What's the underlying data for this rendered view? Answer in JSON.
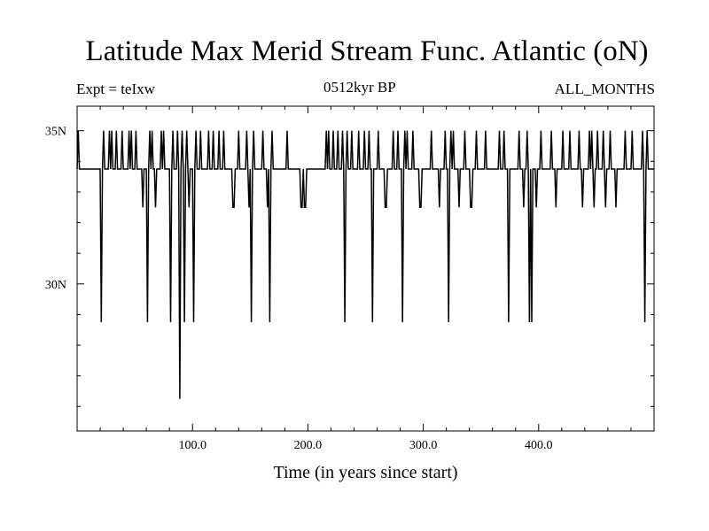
{
  "header": {
    "title": "Latitude Max Merid Stream Func. Atlantic (oN)",
    "left_text": "Expt = teIxw",
    "center_text": "0512kyr BP",
    "right_text": "ALL_MONTHS"
  },
  "chart_data": {
    "type": "line",
    "title": "Latitude Max Merid Stream Func. Atlantic (oN)",
    "xlabel": "Time (in years since start)",
    "ylabel": "",
    "xlim": [
      0,
      500
    ],
    "ylim": [
      25.2,
      35.8
    ],
    "x_ticks": [
      100,
      200,
      300,
      400
    ],
    "x_tick_labels": [
      "100.0",
      "200.0",
      "300.0",
      "400.0"
    ],
    "y_ticks": [
      30,
      35
    ],
    "y_tick_labels": [
      "30N",
      "35N"
    ],
    "baseline": 33.75,
    "high": 35.0,
    "low_values": [
      32.5,
      28.75,
      26.25
    ],
    "series": [
      {
        "points": [
          [
            0,
            33.75
          ],
          [
            1,
            35.0
          ],
          [
            2,
            33.75
          ],
          [
            20,
            33.75
          ],
          [
            21,
            28.75
          ],
          [
            22,
            33.75
          ],
          [
            23,
            35.0
          ],
          [
            24,
            33.75
          ],
          [
            27,
            33.75
          ],
          [
            28,
            35.0
          ],
          [
            29,
            33.75
          ],
          [
            30,
            35.0
          ],
          [
            31,
            33.75
          ],
          [
            33,
            33.75
          ],
          [
            34,
            35.0
          ],
          [
            35,
            33.75
          ],
          [
            38,
            33.75
          ],
          [
            39,
            35.0
          ],
          [
            40,
            33.75
          ],
          [
            44,
            33.75
          ],
          [
            45,
            35.0
          ],
          [
            46,
            33.75
          ],
          [
            47,
            35.0
          ],
          [
            48,
            33.75
          ],
          [
            50,
            33.75
          ],
          [
            51,
            35.0
          ],
          [
            52,
            33.75
          ],
          [
            56,
            33.75
          ],
          [
            57,
            32.5
          ],
          [
            58,
            33.75
          ],
          [
            60,
            33.75
          ],
          [
            61,
            28.75
          ],
          [
            62,
            33.75
          ],
          [
            63,
            35.0
          ],
          [
            64,
            33.75
          ],
          [
            65,
            35.0
          ],
          [
            66,
            33.75
          ],
          [
            67,
            33.75
          ],
          [
            68,
            32.5
          ],
          [
            69,
            33.75
          ],
          [
            72,
            33.75
          ],
          [
            73,
            35.0
          ],
          [
            74,
            33.75
          ],
          [
            75,
            35.0
          ],
          [
            76,
            33.75
          ],
          [
            80,
            33.75
          ],
          [
            81,
            28.75
          ],
          [
            82,
            33.75
          ],
          [
            83,
            35.0
          ],
          [
            84,
            33.75
          ],
          [
            86,
            33.75
          ],
          [
            87,
            35.0
          ],
          [
            88,
            33.75
          ],
          [
            89,
            26.25
          ],
          [
            90,
            33.75
          ],
          [
            91,
            35.0
          ],
          [
            92,
            33.75
          ],
          [
            93,
            28.75
          ],
          [
            94,
            33.75
          ],
          [
            95,
            35.0
          ],
          [
            96,
            33.75
          ],
          [
            97,
            32.5
          ],
          [
            98,
            33.75
          ],
          [
            100,
            33.75
          ],
          [
            101,
            28.75
          ],
          [
            102,
            33.75
          ],
          [
            103,
            35.0
          ],
          [
            104,
            33.75
          ],
          [
            106,
            33.75
          ],
          [
            107,
            35.0
          ],
          [
            108,
            33.75
          ],
          [
            113,
            33.75
          ],
          [
            114,
            35.0
          ],
          [
            115,
            33.75
          ],
          [
            117,
            33.75
          ],
          [
            118,
            35.0
          ],
          [
            119,
            33.75
          ],
          [
            122,
            33.75
          ],
          [
            123,
            35.0
          ],
          [
            124,
            33.75
          ],
          [
            126,
            33.75
          ],
          [
            127,
            35.0
          ],
          [
            128,
            33.75
          ],
          [
            134,
            33.75
          ],
          [
            135,
            32.5
          ],
          [
            136,
            32.5
          ],
          [
            137,
            33.75
          ],
          [
            139,
            33.75
          ],
          [
            140,
            35.0
          ],
          [
            141,
            33.75
          ],
          [
            146,
            33.75
          ],
          [
            147,
            35.0
          ],
          [
            148,
            33.75
          ],
          [
            149,
            32.5
          ],
          [
            150,
            33.75
          ],
          [
            151,
            28.75
          ],
          [
            152,
            33.75
          ],
          [
            153,
            35.0
          ],
          [
            154,
            33.75
          ],
          [
            160,
            33.75
          ],
          [
            161,
            35.0
          ],
          [
            162,
            33.75
          ],
          [
            164,
            33.75
          ],
          [
            165,
            32.5
          ],
          [
            166,
            33.75
          ],
          [
            167,
            28.75
          ],
          [
            168,
            33.75
          ],
          [
            169,
            35.0
          ],
          [
            170,
            33.75
          ],
          [
            181,
            33.75
          ],
          [
            182,
            35.0
          ],
          [
            183,
            33.75
          ],
          [
            193,
            33.75
          ],
          [
            194,
            32.5
          ],
          [
            195,
            32.5
          ],
          [
            196,
            33.75
          ],
          [
            197,
            32.5
          ],
          [
            198,
            32.5
          ],
          [
            199,
            33.75
          ],
          [
            215,
            33.75
          ],
          [
            216,
            35.0
          ],
          [
            217,
            33.75
          ],
          [
            218,
            35.0
          ],
          [
            219,
            33.75
          ],
          [
            221,
            33.75
          ],
          [
            222,
            35.0
          ],
          [
            223,
            33.75
          ],
          [
            225,
            33.75
          ],
          [
            226,
            35.0
          ],
          [
            227,
            33.75
          ],
          [
            229,
            33.75
          ],
          [
            230,
            35.0
          ],
          [
            231,
            33.75
          ],
          [
            232,
            28.75
          ],
          [
            233,
            33.75
          ],
          [
            234,
            35.0
          ],
          [
            235,
            33.75
          ],
          [
            237,
            33.75
          ],
          [
            238,
            35.0
          ],
          [
            239,
            33.75
          ],
          [
            243,
            33.75
          ],
          [
            244,
            35.0
          ],
          [
            245,
            33.75
          ],
          [
            248,
            33.75
          ],
          [
            249,
            35.0
          ],
          [
            250,
            33.75
          ],
          [
            252,
            33.75
          ],
          [
            253,
            35.0
          ],
          [
            254,
            33.75
          ],
          [
            255,
            33.75
          ],
          [
            256,
            28.75
          ],
          [
            257,
            33.75
          ],
          [
            260,
            33.75
          ],
          [
            261,
            35.0
          ],
          [
            262,
            33.75
          ],
          [
            266,
            33.75
          ],
          [
            267,
            32.5
          ],
          [
            268,
            32.5
          ],
          [
            269,
            33.75
          ],
          [
            273,
            33.75
          ],
          [
            274,
            35.0
          ],
          [
            275,
            33.75
          ],
          [
            277,
            33.75
          ],
          [
            278,
            35.0
          ],
          [
            279,
            33.75
          ],
          [
            281,
            33.75
          ],
          [
            282,
            28.75
          ],
          [
            283,
            33.75
          ],
          [
            284,
            35.0
          ],
          [
            285,
            33.75
          ],
          [
            286,
            35.0
          ],
          [
            287,
            33.75
          ],
          [
            290,
            33.75
          ],
          [
            291,
            35.0
          ],
          [
            292,
            33.75
          ],
          [
            296,
            33.75
          ],
          [
            297,
            32.5
          ],
          [
            298,
            32.5
          ],
          [
            299,
            33.75
          ],
          [
            306,
            33.75
          ],
          [
            307,
            35.0
          ],
          [
            308,
            33.75
          ],
          [
            313,
            33.75
          ],
          [
            314,
            32.5
          ],
          [
            315,
            33.75
          ],
          [
            318,
            33.75
          ],
          [
            319,
            35.0
          ],
          [
            320,
            33.75
          ],
          [
            321,
            33.75
          ],
          [
            322,
            28.75
          ],
          [
            323,
            33.75
          ],
          [
            324,
            35.0
          ],
          [
            325,
            33.75
          ],
          [
            326,
            35.0
          ],
          [
            327,
            33.75
          ],
          [
            330,
            33.75
          ],
          [
            331,
            32.5
          ],
          [
            332,
            33.75
          ],
          [
            335,
            33.75
          ],
          [
            336,
            35.0
          ],
          [
            337,
            33.75
          ],
          [
            340,
            33.75
          ],
          [
            341,
            32.5
          ],
          [
            342,
            32.5
          ],
          [
            343,
            33.75
          ],
          [
            345,
            33.75
          ],
          [
            346,
            35.0
          ],
          [
            347,
            33.75
          ],
          [
            353,
            33.75
          ],
          [
            354,
            35.0
          ],
          [
            355,
            33.75
          ],
          [
            365,
            33.75
          ],
          [
            366,
            35.0
          ],
          [
            367,
            33.75
          ],
          [
            369,
            33.75
          ],
          [
            370,
            35.0
          ],
          [
            371,
            33.75
          ],
          [
            373,
            33.75
          ],
          [
            374,
            28.75
          ],
          [
            375,
            33.75
          ],
          [
            382,
            33.75
          ],
          [
            383,
            35.0
          ],
          [
            384,
            33.75
          ],
          [
            386,
            33.75
          ],
          [
            387,
            32.5
          ],
          [
            388,
            33.75
          ],
          [
            389,
            33.75
          ],
          [
            390,
            35.0
          ],
          [
            391,
            33.75
          ],
          [
            392,
            28.75
          ],
          [
            393,
            33.75
          ],
          [
            394,
            28.75
          ],
          [
            395,
            33.75
          ],
          [
            397,
            33.75
          ],
          [
            398,
            32.5
          ],
          [
            399,
            33.75
          ],
          [
            401,
            33.75
          ],
          [
            402,
            35.0
          ],
          [
            403,
            33.75
          ],
          [
            410,
            33.75
          ],
          [
            411,
            35.0
          ],
          [
            412,
            33.75
          ],
          [
            414,
            33.75
          ],
          [
            415,
            32.5
          ],
          [
            416,
            33.75
          ],
          [
            420,
            33.75
          ],
          [
            421,
            35.0
          ],
          [
            422,
            33.75
          ],
          [
            426,
            33.75
          ],
          [
            427,
            35.0
          ],
          [
            428,
            33.75
          ],
          [
            434,
            33.75
          ],
          [
            435,
            35.0
          ],
          [
            436,
            33.75
          ],
          [
            437,
            33.75
          ],
          [
            438,
            32.5
          ],
          [
            439,
            33.75
          ],
          [
            443,
            33.75
          ],
          [
            444,
            35.0
          ],
          [
            445,
            33.75
          ],
          [
            446,
            35.0
          ],
          [
            447,
            33.75
          ],
          [
            448,
            32.5
          ],
          [
            449,
            33.75
          ],
          [
            450,
            33.75
          ],
          [
            451,
            35.0
          ],
          [
            452,
            33.75
          ],
          [
            455,
            33.75
          ],
          [
            456,
            35.0
          ],
          [
            457,
            33.75
          ],
          [
            458,
            32.5
          ],
          [
            459,
            33.75
          ],
          [
            461,
            33.75
          ],
          [
            462,
            35.0
          ],
          [
            463,
            33.75
          ],
          [
            466,
            33.75
          ],
          [
            467,
            32.5
          ],
          [
            468,
            33.75
          ],
          [
            474,
            33.75
          ],
          [
            475,
            35.0
          ],
          [
            476,
            33.75
          ],
          [
            480,
            33.75
          ],
          [
            481,
            35.0
          ],
          [
            482,
            33.75
          ],
          [
            489,
            33.75
          ],
          [
            490,
            35.0
          ],
          [
            491,
            33.75
          ],
          [
            492,
            28.75
          ],
          [
            493,
            33.75
          ],
          [
            494,
            35.0
          ],
          [
            495,
            33.75
          ],
          [
            496,
            33.75
          ],
          [
            500,
            33.75
          ]
        ]
      }
    ],
    "grid": false,
    "legend": "none",
    "line_color": "#000000"
  }
}
